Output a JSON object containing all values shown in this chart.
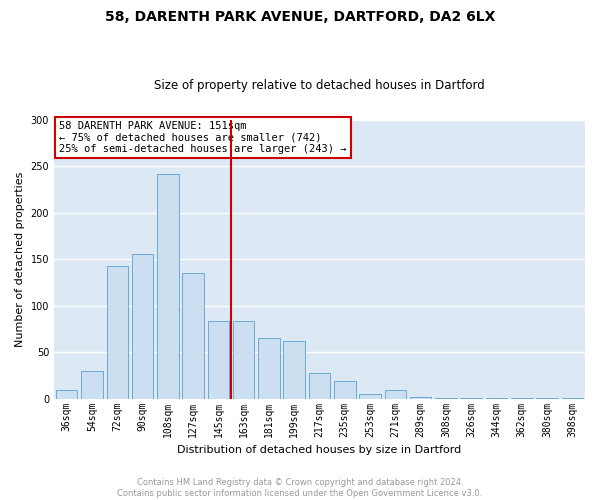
{
  "title": "58, DARENTH PARK AVENUE, DARTFORD, DA2 6LX",
  "subtitle": "Size of property relative to detached houses in Dartford",
  "xlabel": "Distribution of detached houses by size in Dartford",
  "ylabel": "Number of detached properties",
  "bar_color": "#ccdff0",
  "bar_edge_color": "#6aaad4",
  "plot_bg_color": "#dce9f5",
  "figure_bg_color": "#ffffff",
  "grid_color": "#ffffff",
  "categories": [
    "36sqm",
    "54sqm",
    "72sqm",
    "90sqm",
    "108sqm",
    "127sqm",
    "145sqm",
    "163sqm",
    "181sqm",
    "199sqm",
    "217sqm",
    "235sqm",
    "253sqm",
    "271sqm",
    "289sqm",
    "308sqm",
    "326sqm",
    "344sqm",
    "362sqm",
    "380sqm",
    "398sqm"
  ],
  "values": [
    9,
    30,
    143,
    156,
    242,
    135,
    83,
    83,
    65,
    62,
    28,
    19,
    5,
    9,
    2,
    1,
    1,
    1,
    1,
    1,
    1
  ],
  "vline_x": 6.5,
  "vline_color": "#cc0000",
  "annotation_text": "58 DARENTH PARK AVENUE: 151sqm\n← 75% of detached houses are smaller (742)\n25% of semi-detached houses are larger (243) →",
  "annotation_box_color": "#ffffff",
  "annotation_box_edge_color": "#cc0000",
  "ylim": [
    0,
    300
  ],
  "yticks": [
    0,
    50,
    100,
    150,
    200,
    250,
    300
  ],
  "footer_text": "Contains HM Land Registry data © Crown copyright and database right 2024.\nContains public sector information licensed under the Open Government Licence v3.0.",
  "footer_color": "#999999",
  "title_fontsize": 10,
  "subtitle_fontsize": 8.5,
  "axis_label_fontsize": 8,
  "tick_fontsize": 7,
  "annotation_fontsize": 7.5,
  "footer_fontsize": 6
}
